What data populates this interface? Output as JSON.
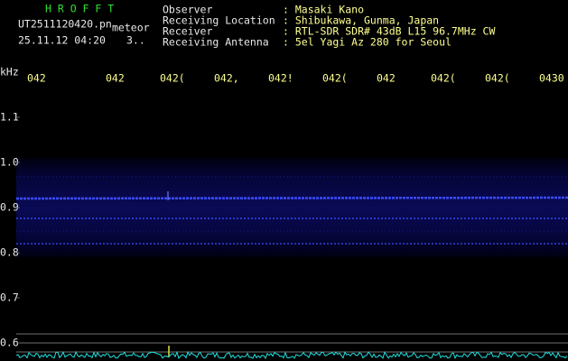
{
  "header": {
    "app": "H R O F F T",
    "file": "UT2511120420.pn",
    "mode": "meteor",
    "datetime": "25.11.12 04:20",
    "extra": "3..",
    "fields": [
      {
        "label": "Observer",
        "value": ": Masaki Kano"
      },
      {
        "label": "Receiving Location",
        "value": ": Shibukawa, Gunma, Japan"
      },
      {
        "label": "Receiver",
        "value": ": RTL-SDR SDR# 43dB L15 96.7MHz CW"
      },
      {
        "label": "Receiving Antenna",
        "value": ": 5el Yagi Az 280 for Seoul"
      }
    ]
  },
  "plot": {
    "unit": "kHz",
    "y_labels": [
      "1.1",
      "1.0",
      "0.9",
      "0.8",
      "0.7",
      "0.6"
    ],
    "time_labels": [
      "042",
      "042",
      "042(",
      "042,",
      "042!",
      "042(",
      "042",
      "042(",
      "042(",
      "0430"
    ]
  }
}
